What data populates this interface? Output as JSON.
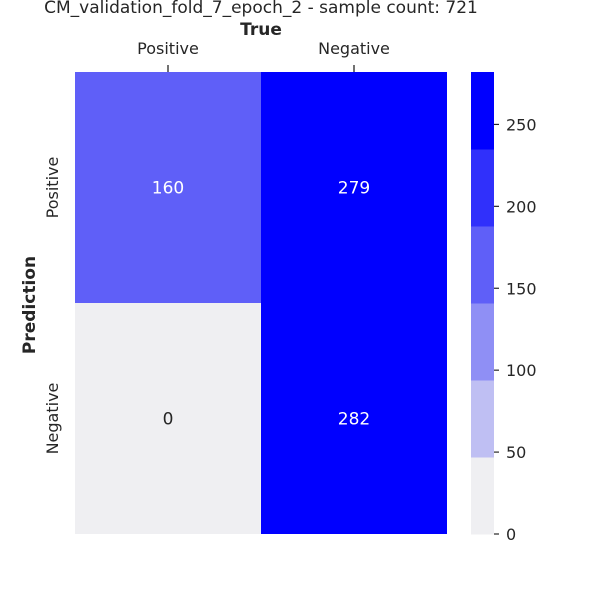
{
  "chart_data": {
    "type": "heatmap",
    "title": "CM_validation_fold_7_epoch_2 - sample count: 721",
    "xlabel": "True",
    "ylabel": "Prediction",
    "x_categories": [
      "Positive",
      "Negative"
    ],
    "y_categories": [
      "Positive",
      "Negative"
    ],
    "values": [
      [
        160,
        279
      ],
      [
        0,
        282
      ]
    ],
    "colorbar": {
      "min": 0,
      "max": 282,
      "ticks": [
        0,
        50,
        100,
        150,
        200,
        250
      ],
      "tick_labels": [
        "0",
        "50",
        "100",
        "150",
        "200",
        "250"
      ],
      "levels": 6,
      "colors": [
        "#efeff2",
        "#bfbff3",
        "#8f8ff5",
        "#5f5ff8",
        "#3030fb",
        "#0000ff"
      ]
    },
    "x_tick_position": "top",
    "grid": false
  }
}
